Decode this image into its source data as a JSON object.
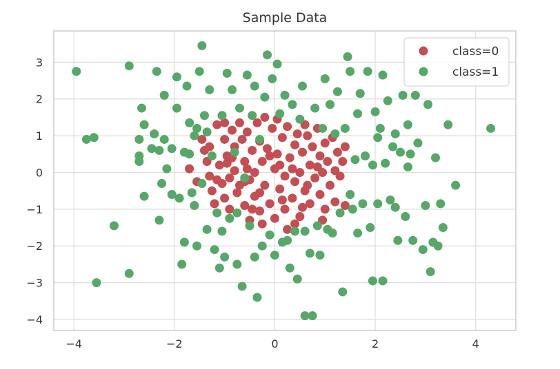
{
  "chart_data": {
    "type": "scatter",
    "title": "Sample Data",
    "xlabel": "",
    "ylabel": "",
    "xlim": [
      -4.4,
      4.8
    ],
    "ylim": [
      -4.3,
      3.85
    ],
    "xticks": [
      -4,
      -2,
      0,
      2,
      4
    ],
    "yticks": [
      -4,
      -3,
      -2,
      -1,
      0,
      1,
      2,
      3
    ],
    "xtick_labels": [
      "−4",
      "−2",
      "0",
      "2",
      "4"
    ],
    "ytick_labels": [
      "−4",
      "−3",
      "−2",
      "−1",
      "0",
      "1",
      "2",
      "3"
    ],
    "grid": true,
    "legend_position": "top-right",
    "series": [
      {
        "name": "class=0",
        "color": "#c44e52",
        "points": [
          [
            -1.7,
            0.1
          ],
          [
            -1.55,
            -0.25
          ],
          [
            -1.45,
            0.9
          ],
          [
            -1.4,
            0.6
          ],
          [
            -1.35,
            0.3
          ],
          [
            -1.3,
            -0.1
          ],
          [
            -1.25,
            -0.5
          ],
          [
            -1.2,
            -0.85
          ],
          [
            -1.15,
            1.3
          ],
          [
            -1.1,
            0.2
          ],
          [
            -1.05,
            -0.3
          ],
          [
            -1.0,
            0.9
          ],
          [
            -1.0,
            -0.7
          ],
          [
            -0.95,
            0.45
          ],
          [
            -0.9,
            -0.15
          ],
          [
            -0.9,
            -1.0
          ],
          [
            -0.85,
            1.15
          ],
          [
            -0.8,
            0.7
          ],
          [
            -0.8,
            0.05
          ],
          [
            -0.75,
            -0.55
          ],
          [
            -0.7,
            1.35
          ],
          [
            -0.7,
            -0.35
          ],
          [
            -0.65,
            0.9
          ],
          [
            -0.6,
            0.3
          ],
          [
            -0.6,
            -0.9
          ],
          [
            -0.55,
            1.1
          ],
          [
            -0.5,
            -0.2
          ],
          [
            -0.5,
            -1.3
          ],
          [
            -0.45,
            0.6
          ],
          [
            -0.4,
            0.0
          ],
          [
            -0.4,
            -0.65
          ],
          [
            -0.35,
            1.35
          ],
          [
            -0.3,
            0.85
          ],
          [
            -0.3,
            -1.05
          ],
          [
            -0.25,
            0.3
          ],
          [
            -0.2,
            1.5
          ],
          [
            -0.2,
            -0.35
          ],
          [
            -0.15,
            0.65
          ],
          [
            -0.1,
            -0.85
          ],
          [
            -0.05,
            1.2
          ],
          [
            0.0,
            0.1
          ],
          [
            0.0,
            -1.25
          ],
          [
            0.05,
            0.5
          ],
          [
            0.1,
            -0.45
          ],
          [
            0.15,
            0.95
          ],
          [
            0.2,
            -0.1
          ],
          [
            0.2,
            -1.0
          ],
          [
            0.25,
            1.25
          ],
          [
            0.3,
            0.4
          ],
          [
            0.35,
            -0.7
          ],
          [
            0.4,
            0.75
          ],
          [
            0.4,
            -0.25
          ],
          [
            0.45,
            1.05
          ],
          [
            0.5,
            0.0
          ],
          [
            0.5,
            -1.2
          ],
          [
            0.55,
            0.55
          ],
          [
            0.6,
            -0.5
          ],
          [
            0.65,
            1.0
          ],
          [
            0.7,
            0.2
          ],
          [
            0.7,
            -0.85
          ],
          [
            0.75,
            0.7
          ],
          [
            0.8,
            -0.15
          ],
          [
            0.85,
            1.2
          ],
          [
            0.9,
            0.45
          ],
          [
            0.9,
            -0.6
          ],
          [
            0.95,
            0.0
          ],
          [
            1.0,
            0.8
          ],
          [
            1.0,
            -1.0
          ],
          [
            1.05,
            0.3
          ],
          [
            1.1,
            -0.35
          ],
          [
            1.15,
            0.95
          ],
          [
            1.2,
            -0.8
          ],
          [
            1.25,
            0.55
          ],
          [
            1.3,
            -0.1
          ],
          [
            1.35,
            0.3
          ],
          [
            1.4,
            0.7
          ],
          [
            -1.3,
            0.7
          ],
          [
            -0.25,
            -1.4
          ],
          [
            0.25,
            -1.55
          ],
          [
            -0.1,
            0.45
          ],
          [
            0.65,
            -0.35
          ],
          [
            -0.6,
            -0.25
          ],
          [
            0.15,
            -0.75
          ],
          [
            0.35,
            0.1
          ],
          [
            -0.45,
            -1.0
          ],
          [
            0.85,
            0.15
          ],
          [
            -1.15,
            -0.2
          ],
          [
            0.55,
            -0.95
          ],
          [
            1.2,
            0.05
          ],
          [
            -0.85,
            0.4
          ],
          [
            0.05,
            1.45
          ],
          [
            0.95,
            -1.3
          ],
          [
            -0.95,
            0.25
          ],
          [
            1.4,
            -0.9
          ],
          [
            -1.0,
            1.35
          ],
          [
            0.6,
            1.3
          ],
          [
            0.4,
            -1.4
          ],
          [
            -0.55,
            0.1
          ],
          [
            0.1,
            0.2
          ],
          [
            -0.3,
            -0.55
          ]
        ]
      },
      {
        "name": "class=1",
        "color": "#55a868",
        "points": [
          [
            -3.95,
            2.75
          ],
          [
            -3.75,
            0.9
          ],
          [
            -3.6,
            0.95
          ],
          [
            -3.55,
            -3.0
          ],
          [
            -3.2,
            -1.45
          ],
          [
            -2.9,
            2.9
          ],
          [
            -2.9,
            -2.75
          ],
          [
            -2.7,
            0.3
          ],
          [
            -2.7,
            0.45
          ],
          [
            -2.65,
            1.75
          ],
          [
            -2.6,
            1.3
          ],
          [
            -2.6,
            -0.65
          ],
          [
            -2.45,
            0.65
          ],
          [
            -2.4,
            1.05
          ],
          [
            -2.35,
            2.75
          ],
          [
            -2.3,
            0.6
          ],
          [
            -2.3,
            -1.3
          ],
          [
            -2.25,
            -0.3
          ],
          [
            -2.2,
            0.9
          ],
          [
            -2.15,
            0.1
          ],
          [
            -2.05,
            0.65
          ],
          [
            -2.05,
            -0.6
          ],
          [
            -1.95,
            1.75
          ],
          [
            -1.95,
            2.6
          ],
          [
            -1.9,
            -0.7
          ],
          [
            -1.85,
            -2.5
          ],
          [
            -1.8,
            -1.9
          ],
          [
            -1.75,
            2.35
          ],
          [
            -1.7,
            0.5
          ],
          [
            -1.7,
            1.35
          ],
          [
            -1.65,
            -0.55
          ],
          [
            -1.6,
            1.0
          ],
          [
            -1.6,
            -0.9
          ],
          [
            -1.55,
            1.2
          ],
          [
            -1.5,
            2.75
          ],
          [
            -1.45,
            3.45
          ],
          [
            -1.45,
            -0.3
          ],
          [
            -1.4,
            1.55
          ],
          [
            -1.35,
            1.1
          ],
          [
            -1.3,
            2.25
          ],
          [
            -1.25,
            0.45
          ],
          [
            -1.2,
            -2.1
          ],
          [
            -1.15,
            -1.1
          ],
          [
            -1.05,
            1.55
          ],
          [
            -1.0,
            -2.3
          ],
          [
            -0.95,
            2.7
          ],
          [
            -0.9,
            -1.25
          ],
          [
            -0.85,
            2.25
          ],
          [
            -0.8,
            0.55
          ],
          [
            -0.75,
            -2.5
          ],
          [
            -0.7,
            1.75
          ],
          [
            -0.65,
            -3.1
          ],
          [
            -0.6,
            -0.15
          ],
          [
            -0.55,
            2.65
          ],
          [
            -0.5,
            -1.45
          ],
          [
            -0.45,
            1.55
          ],
          [
            -0.4,
            2.35
          ],
          [
            -0.4,
            -2.3
          ],
          [
            -0.35,
            -3.4
          ],
          [
            -0.3,
            0.9
          ],
          [
            -0.25,
            -2.0
          ],
          [
            -0.2,
            2.05
          ],
          [
            -0.15,
            3.2
          ],
          [
            -0.1,
            -1.7
          ],
          [
            -0.05,
            2.55
          ],
          [
            0.0,
            -2.25
          ],
          [
            0.05,
            2.95
          ],
          [
            0.1,
            1.6
          ],
          [
            0.15,
            -1.9
          ],
          [
            0.2,
            2.1
          ],
          [
            0.3,
            -2.6
          ],
          [
            0.35,
            1.85
          ],
          [
            0.4,
            -1.6
          ],
          [
            0.45,
            -2.9
          ],
          [
            0.5,
            1.45
          ],
          [
            0.55,
            2.35
          ],
          [
            0.6,
            -1.6
          ],
          [
            0.6,
            -3.9
          ],
          [
            0.7,
            -2.2
          ],
          [
            0.75,
            -3.9
          ],
          [
            0.8,
            1.75
          ],
          [
            0.9,
            -2.25
          ],
          [
            0.95,
            1.2
          ],
          [
            1.0,
            2.55
          ],
          [
            1.05,
            -1.55
          ],
          [
            1.1,
            1.85
          ],
          [
            1.15,
            -1.65
          ],
          [
            1.2,
            1.05
          ],
          [
            1.25,
            2.2
          ],
          [
            1.3,
            -1.1
          ],
          [
            1.35,
            -3.25
          ],
          [
            1.4,
            1.2
          ],
          [
            1.45,
            3.15
          ],
          [
            1.5,
            2.75
          ],
          [
            1.55,
            -1.0
          ],
          [
            1.6,
            0.35
          ],
          [
            1.65,
            1.6
          ],
          [
            1.7,
            2.15
          ],
          [
            1.75,
            -0.85
          ],
          [
            1.8,
            0.45
          ],
          [
            1.85,
            2.75
          ],
          [
            1.9,
            -1.5
          ],
          [
            1.95,
            0.2
          ],
          [
            2.0,
            1.65
          ],
          [
            2.05,
            -0.85
          ],
          [
            2.1,
            1.2
          ],
          [
            2.15,
            2.65
          ],
          [
            2.15,
            -2.95
          ],
          [
            2.2,
            0.25
          ],
          [
            2.25,
            1.95
          ],
          [
            2.3,
            -0.75
          ],
          [
            2.35,
            0.7
          ],
          [
            2.4,
            1.05
          ],
          [
            2.45,
            -1.85
          ],
          [
            2.5,
            0.55
          ],
          [
            2.55,
            2.1
          ],
          [
            2.6,
            -1.2
          ],
          [
            2.65,
            1.3
          ],
          [
            2.7,
            0.5
          ],
          [
            2.75,
            -1.85
          ],
          [
            2.8,
            2.1
          ],
          [
            2.85,
            0.8
          ],
          [
            2.95,
            -2.1
          ],
          [
            3.0,
            -0.9
          ],
          [
            3.05,
            1.85
          ],
          [
            3.1,
            -2.7
          ],
          [
            3.15,
            -1.9
          ],
          [
            3.2,
            0.4
          ],
          [
            3.25,
            -2.0
          ],
          [
            3.35,
            -1.5
          ],
          [
            3.45,
            1.3
          ],
          [
            3.6,
            -0.35
          ],
          [
            4.3,
            1.2
          ],
          [
            -2.2,
            2.1
          ],
          [
            1.95,
            -2.95
          ],
          [
            -1.1,
            -2.6
          ],
          [
            2.4,
            -0.95
          ],
          [
            3.3,
            -0.85
          ],
          [
            -1.55,
            -2.0
          ],
          [
            0.85,
            -1.45
          ],
          [
            1.65,
            -1.65
          ],
          [
            -0.75,
            -1.1
          ],
          [
            2.05,
            0.95
          ],
          [
            -2.7,
            0.9
          ],
          [
            -1.05,
            -1.6
          ],
          [
            0.25,
            -1.85
          ],
          [
            1.5,
            -0.6
          ],
          [
            -1.8,
            0.55
          ],
          [
            2.65,
            0.15
          ],
          [
            -1.35,
            -1.55
          ]
        ]
      }
    ]
  }
}
